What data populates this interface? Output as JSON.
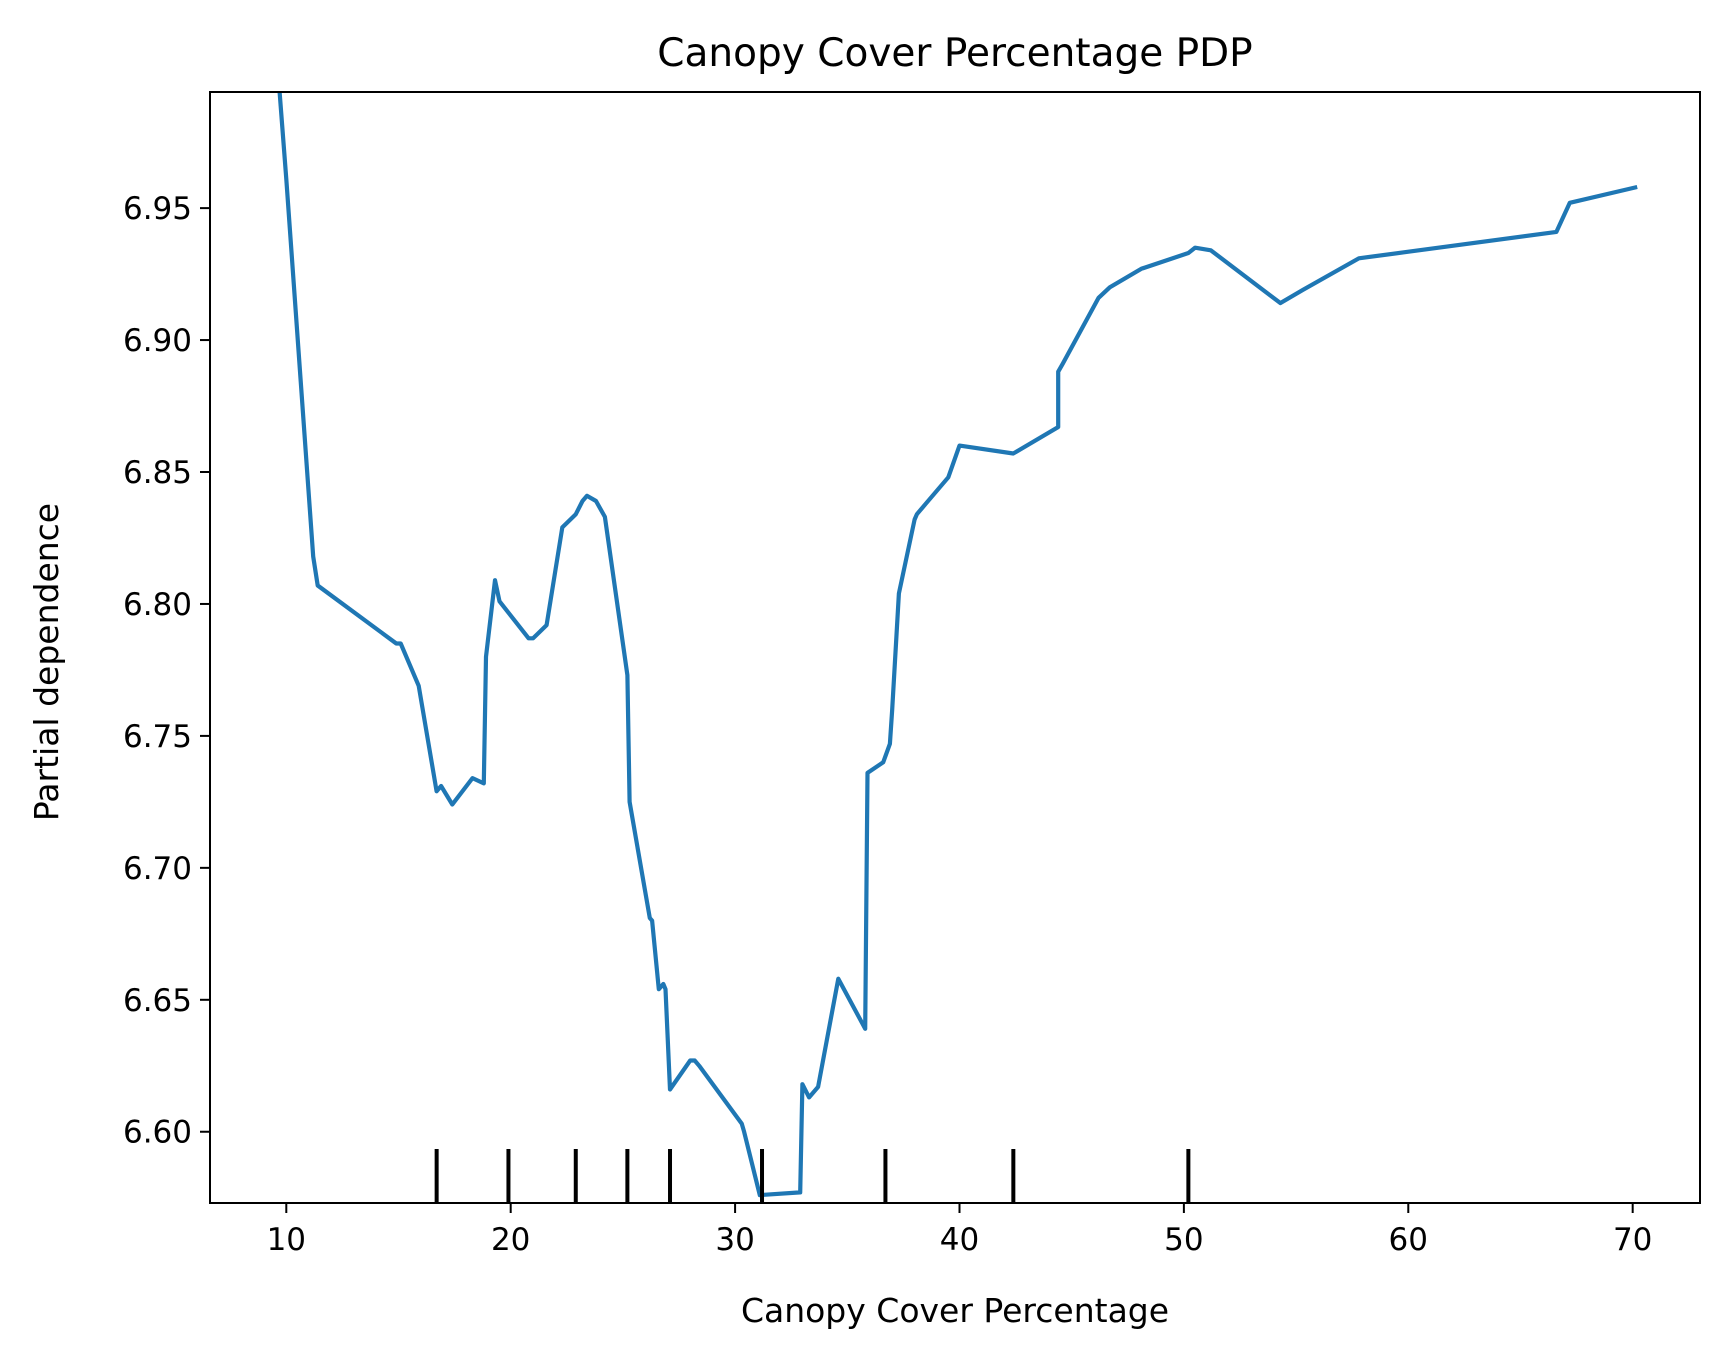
{
  "chart_data": {
    "type": "line",
    "title": "Canopy Cover Percentage PDP",
    "xlabel": "Canopy Cover Percentage",
    "ylabel": "Partial dependence",
    "xlim": [
      6.6,
      73.0
    ],
    "ylim": [
      6.573,
      6.994
    ],
    "x_ticks": [
      10,
      20,
      30,
      40,
      50,
      60,
      70
    ],
    "x_tick_labels": [
      "10",
      "20",
      "30",
      "40",
      "50",
      "60",
      "70"
    ],
    "y_ticks": [
      6.6,
      6.65,
      6.7,
      6.75,
      6.8,
      6.85,
      6.9,
      6.95
    ],
    "y_tick_labels": [
      "6.60",
      "6.65",
      "6.70",
      "6.75",
      "6.80",
      "6.85",
      "6.90",
      "6.95"
    ],
    "grid": false,
    "series_color": "#1f77b4",
    "series": [
      {
        "x": [
          9.7,
          10.0,
          11.2,
          11.4,
          14.9,
          15.1,
          15.9,
          16.7,
          16.9,
          17.4,
          18.3,
          18.8,
          18.9,
          19.3,
          19.5,
          20.8,
          21.0,
          21.6,
          22.3,
          22.9,
          23.2,
          23.4,
          23.8,
          24.2,
          25.2,
          25.3,
          26.2,
          26.3,
          26.6,
          26.8,
          26.9,
          27.1,
          28.0,
          28.2,
          28.4,
          30.3,
          30.4,
          31.1,
          32.9,
          33.0,
          33.3,
          33.7,
          34.6,
          35.8,
          35.9,
          36.6,
          36.9,
          37.0,
          37.3,
          38.0,
          38.1,
          38.5,
          39.5,
          40.0,
          42.4,
          44.4,
          44.4,
          44.6,
          46.2,
          46.7,
          48.1,
          50.2,
          50.5,
          51.2,
          54.3,
          55.3,
          57.8,
          66.6,
          67.2,
          70.2
        ],
        "y": [
          6.994,
          6.961,
          6.818,
          6.807,
          6.785,
          6.785,
          6.769,
          6.729,
          6.731,
          6.724,
          6.734,
          6.732,
          6.78,
          6.809,
          6.801,
          6.787,
          6.787,
          6.792,
          6.829,
          6.834,
          6.839,
          6.841,
          6.839,
          6.833,
          6.773,
          6.725,
          6.681,
          6.68,
          6.654,
          6.656,
          6.654,
          6.616,
          6.627,
          6.627,
          6.625,
          6.603,
          6.6,
          6.576,
          6.577,
          6.618,
          6.613,
          6.617,
          6.658,
          6.639,
          6.736,
          6.74,
          6.747,
          6.76,
          6.804,
          6.832,
          6.834,
          6.838,
          6.848,
          6.86,
          6.857,
          6.867,
          6.888,
          6.891,
          6.916,
          6.92,
          6.927,
          6.933,
          6.935,
          6.934,
          6.914,
          6.919,
          6.931,
          6.941,
          6.952,
          6.958
        ]
      }
    ],
    "rug_deciles": [
      16.7,
      19.9,
      22.9,
      25.2,
      27.1,
      31.2,
      36.7,
      42.4,
      50.2
    ]
  }
}
